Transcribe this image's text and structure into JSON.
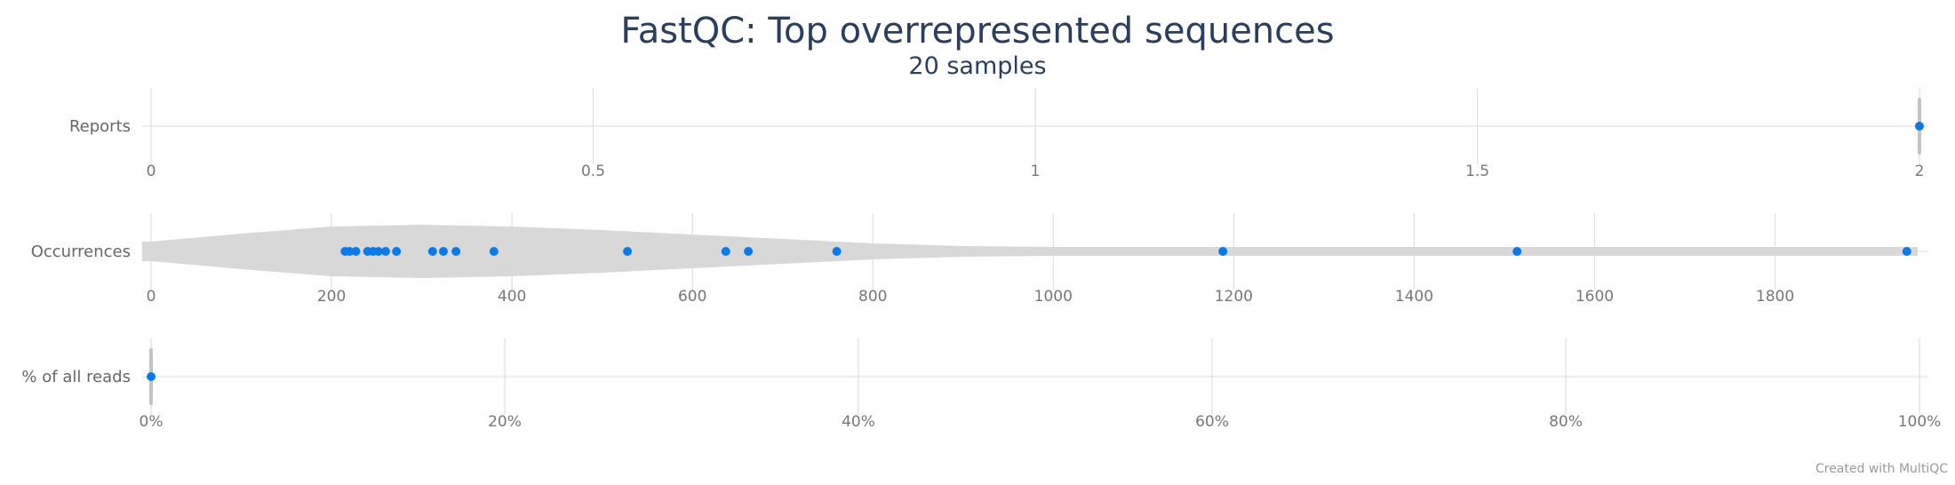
{
  "chart_data": {
    "type": "violin",
    "title": "FastQC: Top overrepresented sequences",
    "subtitle": "20 samples",
    "credit": "Created with MultiQC",
    "colors": {
      "point": "#0b79e8",
      "violin": "#d6d6d6",
      "grid": "#e0e0e0"
    },
    "rows": [
      {
        "label": "Reports",
        "xlim": [
          0,
          2
        ],
        "ticks": [
          0,
          0.5,
          1,
          1.5,
          2
        ],
        "tick_labels": [
          "0",
          "0.5",
          "1",
          "1.5",
          "2"
        ],
        "values": [
          2
        ],
        "violin": {
          "center": 2,
          "width": 0.012
        }
      },
      {
        "label": "Occurrences",
        "xlim": [
          0,
          1960
        ],
        "ticks": [
          0,
          200,
          400,
          600,
          800,
          1000,
          1200,
          1400,
          1600,
          1800
        ],
        "tick_labels": [
          "0",
          "200",
          "400",
          "600",
          "800",
          "1000",
          "1200",
          "1400",
          "1600",
          "1800"
        ],
        "values": [
          215,
          220,
          227,
          240,
          246,
          252,
          260,
          272,
          312,
          324,
          338,
          380,
          528,
          637,
          662,
          760,
          1188,
          1514,
          1946
        ],
        "violin": {
          "x": [
            -10,
            0,
            100,
            200,
            300,
            400,
            500,
            600,
            700,
            800,
            900,
            1000,
            1200,
            1400,
            1600,
            1800,
            1958
          ],
          "half_height": [
            11,
            11,
            20,
            28,
            30,
            28,
            24,
            19,
            14,
            9,
            6,
            5,
            5,
            5,
            5,
            5,
            5
          ]
        }
      },
      {
        "label": "% of all reads",
        "xlim": [
          0,
          100
        ],
        "ticks": [
          0,
          20,
          40,
          60,
          80,
          100
        ],
        "tick_labels": [
          "0%",
          "20%",
          "40%",
          "60%",
          "80%",
          "100%"
        ],
        "values": [
          0
        ],
        "violin": {
          "center": 0,
          "width": 0.6
        }
      }
    ]
  }
}
